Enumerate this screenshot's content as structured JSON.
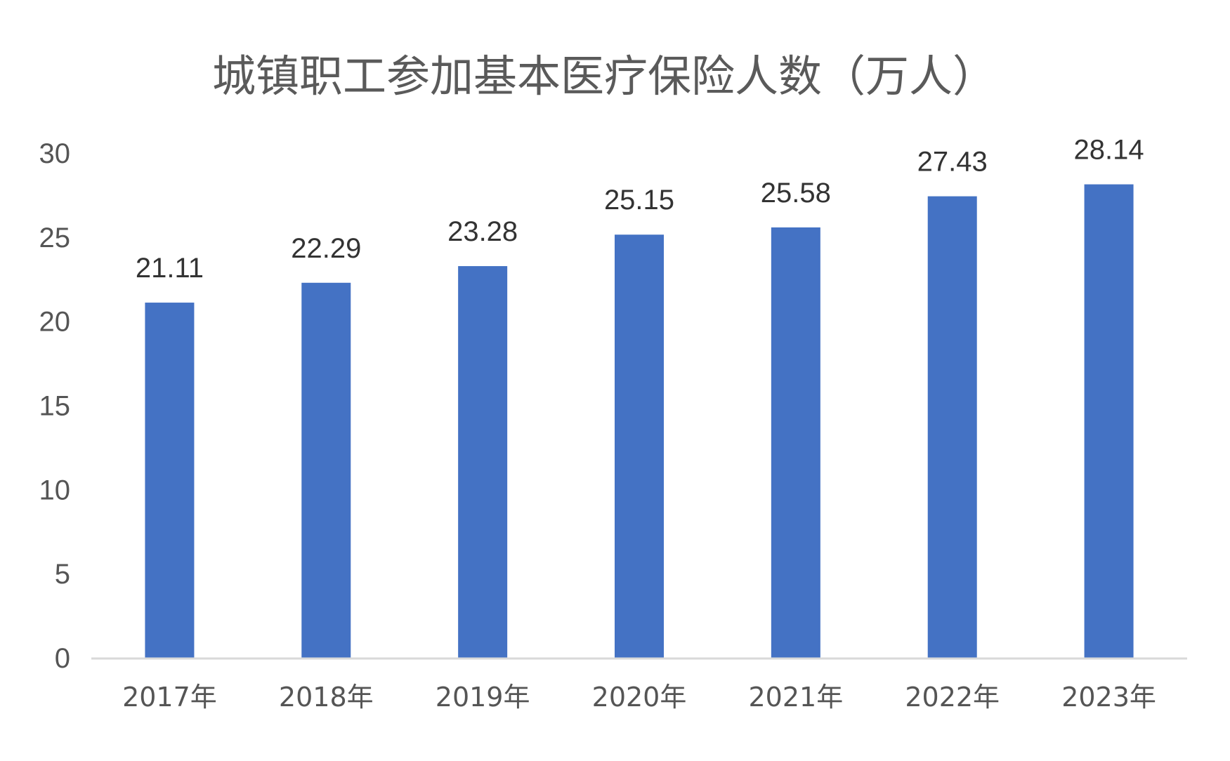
{
  "chart_data": {
    "type": "bar",
    "title": "城镇职工参加基本医疗保险人数（万人）",
    "xlabel": "",
    "ylabel": "",
    "categories": [
      "2017年",
      "2018年",
      "2019年",
      "2020年",
      "2021年",
      "2022年",
      "2023年"
    ],
    "values": [
      21.11,
      22.29,
      23.28,
      25.15,
      25.58,
      27.43,
      28.14
    ],
    "data_labels": [
      "21.11",
      "22.29",
      "23.28",
      "25.15",
      "25.58",
      "27.43",
      "28.14"
    ],
    "ylim": [
      0,
      30
    ],
    "y_ticks": [
      "0",
      "5",
      "10",
      "15",
      "20",
      "25",
      "30"
    ],
    "grid": false,
    "legend": "none",
    "bar_color": "#4472C4",
    "axis_color": "#d9d9d9"
  }
}
